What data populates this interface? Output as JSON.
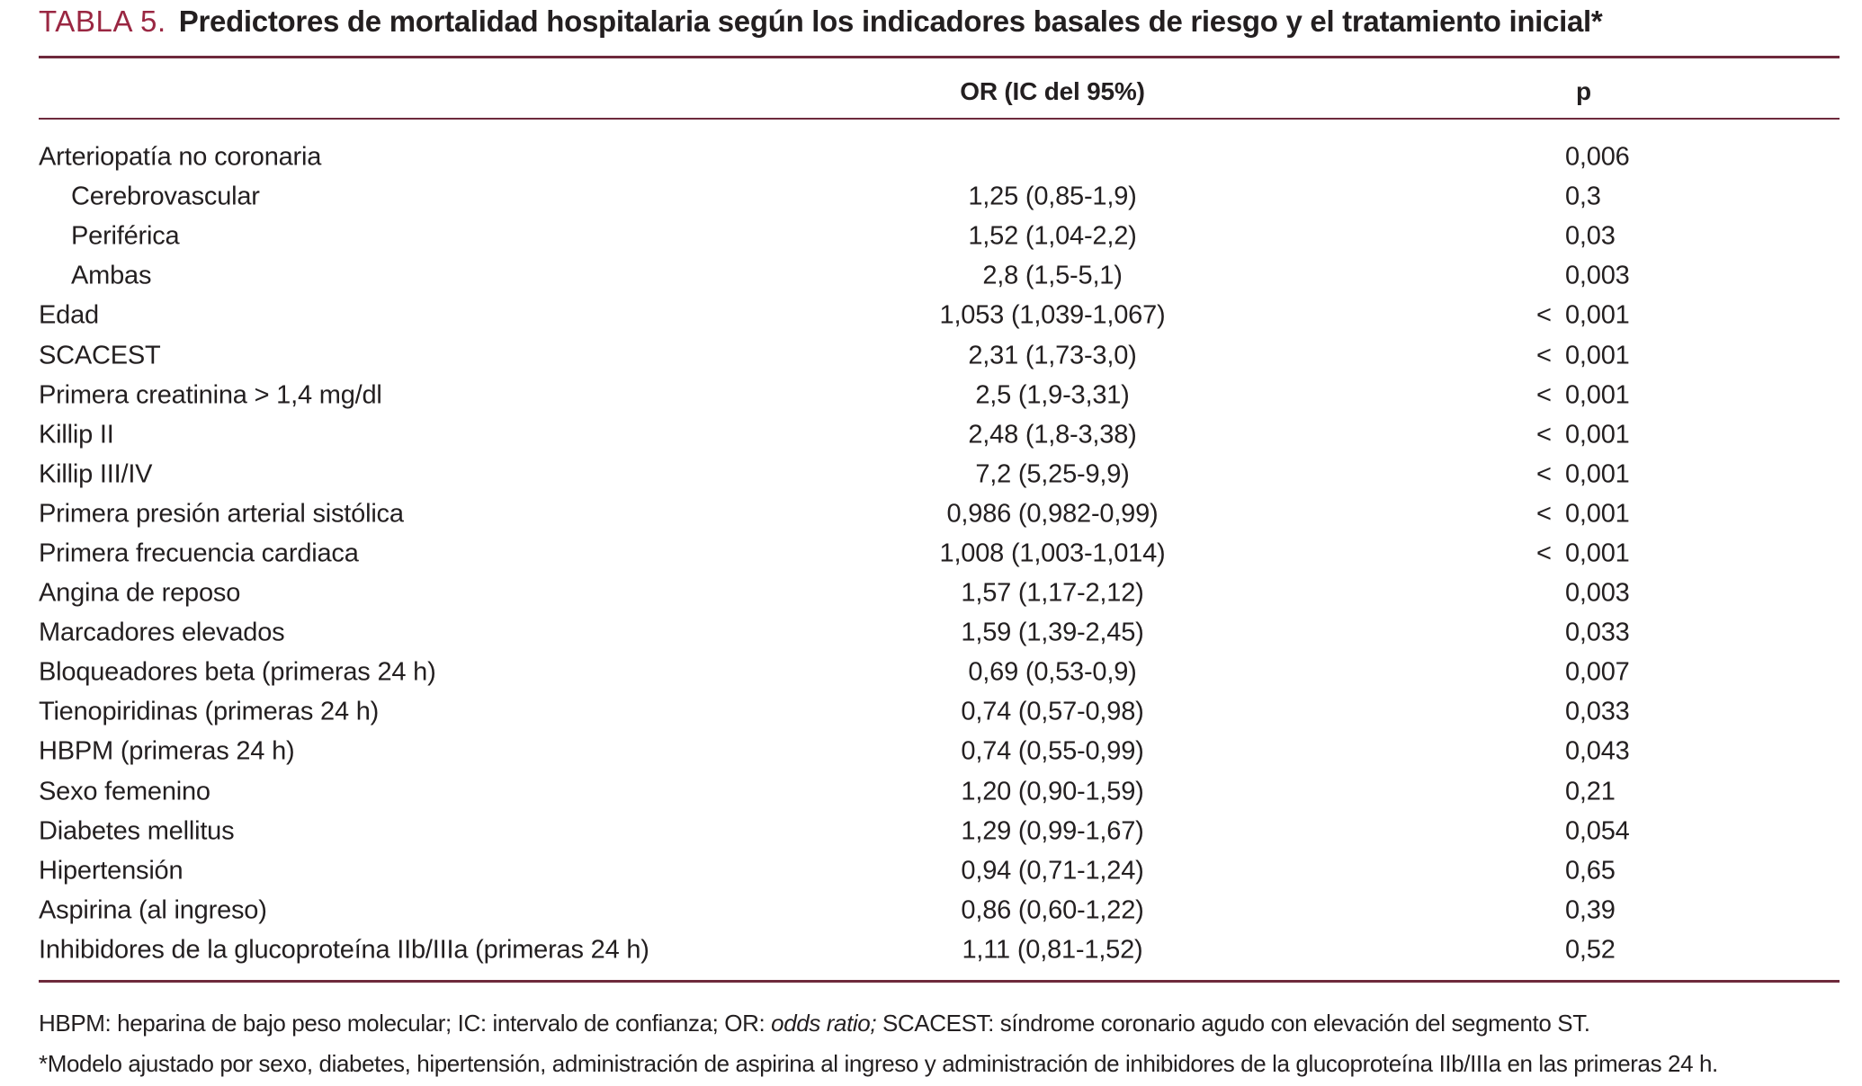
{
  "title": {
    "label": "TABLA 5.",
    "text": "Predictores de mortalidad hospitalaria según los indicadores basales de riesgo y el tratamiento inicial*"
  },
  "columns": {
    "or": "OR (IC del 95%)",
    "p": "p"
  },
  "table": {
    "rows": [
      {
        "label": "Arteriopatía no coronaria",
        "indent": false,
        "or": "",
        "p_prefix": "",
        "p": "0,006"
      },
      {
        "label": "Cerebrovascular",
        "indent": true,
        "or": "1,25 (0,85-1,9)",
        "p_prefix": "",
        "p": "0,3"
      },
      {
        "label": "Periférica",
        "indent": true,
        "or": "1,52 (1,04-2,2)",
        "p_prefix": "",
        "p": "0,03"
      },
      {
        "label": "Ambas",
        "indent": true,
        "or": "2,8 (1,5-5,1)",
        "p_prefix": "",
        "p": "0,003"
      },
      {
        "label": "Edad",
        "indent": false,
        "or": "1,053 (1,039-1,067)",
        "p_prefix": "<",
        "p": "0,001"
      },
      {
        "label": "SCACEST",
        "indent": false,
        "or": "2,31 (1,73-3,0)",
        "p_prefix": "<",
        "p": "0,001"
      },
      {
        "label": "Primera creatinina > 1,4 mg/dl",
        "indent": false,
        "or": "2,5 (1,9-3,31)",
        "p_prefix": "<",
        "p": "0,001"
      },
      {
        "label": "Killip II",
        "indent": false,
        "or": "2,48 (1,8-3,38)",
        "p_prefix": "<",
        "p": "0,001"
      },
      {
        "label": "Killip III/IV",
        "indent": false,
        "or": "7,2 (5,25-9,9)",
        "p_prefix": "<",
        "p": "0,001"
      },
      {
        "label": "Primera presión arterial sistólica",
        "indent": false,
        "or": "0,986 (0,982-0,99)",
        "p_prefix": "<",
        "p": "0,001"
      },
      {
        "label": "Primera frecuencia cardiaca",
        "indent": false,
        "or": "1,008 (1,003-1,014)",
        "p_prefix": "<",
        "p": "0,001"
      },
      {
        "label": "Angina de reposo",
        "indent": false,
        "or": "1,57 (1,17-2,12)",
        "p_prefix": "",
        "p": "0,003"
      },
      {
        "label": "Marcadores elevados",
        "indent": false,
        "or": "1,59 (1,39-2,45)",
        "p_prefix": "",
        "p": "0,033"
      },
      {
        "label": "Bloqueadores beta (primeras 24 h)",
        "indent": false,
        "or": "0,69 (0,53-0,9)",
        "p_prefix": "",
        "p": "0,007"
      },
      {
        "label": "Tienopiridinas (primeras 24 h)",
        "indent": false,
        "or": "0,74 (0,57-0,98)",
        "p_prefix": "",
        "p": "0,033"
      },
      {
        "label": "HBPM (primeras 24 h)",
        "indent": false,
        "or": "0,74 (0,55-0,99)",
        "p_prefix": "",
        "p": "0,043"
      },
      {
        "label": "Sexo femenino",
        "indent": false,
        "or": "1,20 (0,90-1,59)",
        "p_prefix": "",
        "p": "0,21"
      },
      {
        "label": "Diabetes mellitus",
        "indent": false,
        "or": "1,29 (0,99-1,67)",
        "p_prefix": "",
        "p": "0,054"
      },
      {
        "label": "Hipertensión",
        "indent": false,
        "or": "0,94 (0,71-1,24)",
        "p_prefix": "",
        "p": "0,65"
      },
      {
        "label": "Aspirina (al ingreso)",
        "indent": false,
        "or": "0,86 (0,60-1,22)",
        "p_prefix": "",
        "p": "0,39"
      },
      {
        "label": "Inhibidores de la glucoproteína IIb/IIIa (primeras 24 h)",
        "indent": false,
        "or": "1,11 (0,81-1,52)",
        "p_prefix": "",
        "p": "0,52"
      }
    ]
  },
  "footnotes": {
    "abbrev_pre": "HBPM: heparina de bajo peso molecular; IC: intervalo de confianza; OR: ",
    "abbrev_italic": "odds ratio;",
    "abbrev_post": " SCACEST: síndrome coronario agudo con elevación del segmento ST.",
    "model": "*Modelo ajustado por sexo, diabetes, hipertensión, administración de aspirina al ingreso y administración de inhibidores de la glucoproteína IIb/IIIa en las primeras 24 h."
  },
  "colors": {
    "accent_red": "#9a2742",
    "rule": "#6e2a3c",
    "text": "#231f20"
  }
}
